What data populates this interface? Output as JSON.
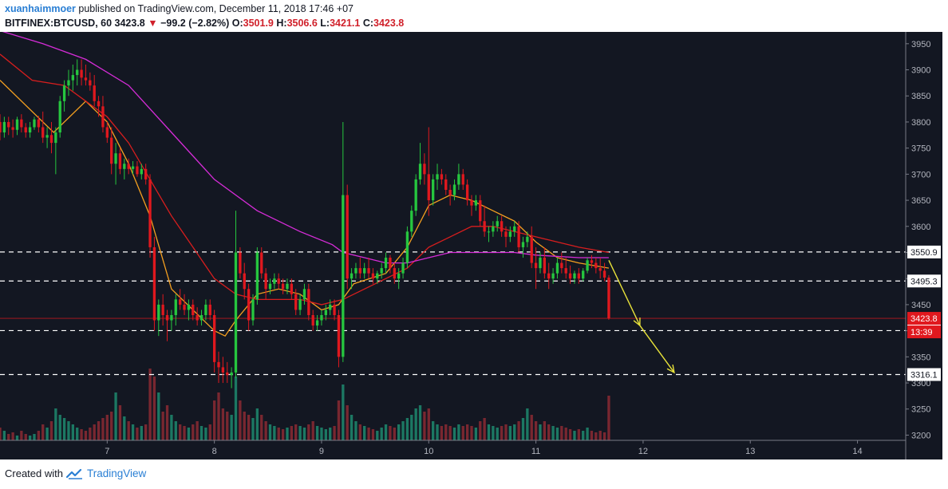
{
  "header": {
    "author": "xuanhaimmoer",
    "published_text": "published on TradingView.com, December 11, 2018 17:46 +07",
    "symbol": "BITFINEX:BTCUSD, 60",
    "last": "3423.8",
    "arrow": "▼",
    "change": "−99.2 (−2.82%)",
    "o_label": "O:",
    "o": "3501.9",
    "h_label": "H:",
    "h": "3506.6",
    "l_label": "L:",
    "l": "3421.1",
    "c_label": "C:",
    "c": "3423.8"
  },
  "footer": {
    "created_with": "Created with",
    "brand": "TradingView"
  },
  "colors": {
    "background": "#131722",
    "up": "#26c63f",
    "down": "#e0181e",
    "ema_fast": "#f5a020",
    "ema_mid": "#d81e1e",
    "ema_slow": "#d62cd8",
    "levels": "#ffffff",
    "arrow": "#e8e23a"
  },
  "chart_data": {
    "type": "candlestick",
    "x_ticks": [
      "7",
      "8",
      "9",
      "10",
      "11",
      "12",
      "13",
      "14"
    ],
    "y_ticks": [
      3200,
      3250,
      3300,
      3350,
      3400,
      3450,
      3500,
      3550,
      3600,
      3650,
      3700,
      3750,
      3800,
      3850,
      3900,
      3950
    ],
    "ylim": [
      3190,
      3965
    ],
    "xlim": [
      6.0,
      14.45
    ],
    "grid": false,
    "levels": [
      {
        "value": 3550.9,
        "label": "3550.9",
        "style": "dashed"
      },
      {
        "value": 3495.3,
        "label": "3495.3",
        "style": "dashed"
      },
      {
        "value": 3400.3,
        "label": "3400.3",
        "style": "dashed"
      },
      {
        "value": 3316.1,
        "label": "3316.1",
        "style": "dashed"
      }
    ],
    "last_price": {
      "value": 3423.8,
      "label": "3423.8",
      "countdown": "13:39"
    },
    "candles_key": [
      "day",
      "open",
      "high",
      "low",
      "close",
      "volume"
    ],
    "candles": [
      [
        6.0,
        3800,
        3815,
        3765,
        3780,
        8
      ],
      [
        6.04,
        3780,
        3810,
        3770,
        3800,
        6
      ],
      [
        6.08,
        3800,
        3810,
        3775,
        3790,
        4
      ],
      [
        6.12,
        3790,
        3805,
        3770,
        3785,
        5
      ],
      [
        6.16,
        3785,
        3810,
        3775,
        3805,
        3
      ],
      [
        6.2,
        3805,
        3815,
        3780,
        3790,
        6
      ],
      [
        6.24,
        3790,
        3798,
        3770,
        3780,
        4
      ],
      [
        6.28,
        3780,
        3800,
        3770,
        3790,
        3
      ],
      [
        6.32,
        3790,
        3810,
        3785,
        3805,
        4
      ],
      [
        6.36,
        3805,
        3812,
        3780,
        3790,
        6
      ],
      [
        6.4,
        3790,
        3820,
        3760,
        3770,
        10
      ],
      [
        6.44,
        3770,
        3790,
        3750,
        3775,
        8
      ],
      [
        6.48,
        3775,
        3800,
        3740,
        3760,
        12
      ],
      [
        6.52,
        3760,
        3790,
        3700,
        3780,
        20
      ],
      [
        6.56,
        3780,
        3850,
        3770,
        3840,
        16
      ],
      [
        6.6,
        3840,
        3880,
        3820,
        3870,
        14
      ],
      [
        6.64,
        3870,
        3900,
        3850,
        3880,
        12
      ],
      [
        6.68,
        3880,
        3910,
        3860,
        3890,
        10
      ],
      [
        6.72,
        3890,
        3920,
        3870,
        3900,
        8
      ],
      [
        6.76,
        3900,
        3920,
        3870,
        3885,
        7
      ],
      [
        6.8,
        3885,
        3910,
        3870,
        3880,
        6
      ],
      [
        6.84,
        3880,
        3895,
        3860,
        3870,
        8
      ],
      [
        6.88,
        3870,
        3890,
        3830,
        3840,
        10
      ],
      [
        6.92,
        3840,
        3850,
        3810,
        3830,
        12
      ],
      [
        6.96,
        3830,
        3850,
        3780,
        3790,
        14
      ],
      [
        7.0,
        3790,
        3800,
        3760,
        3770,
        16
      ],
      [
        7.04,
        3770,
        3790,
        3700,
        3720,
        18
      ],
      [
        7.08,
        3720,
        3760,
        3680,
        3740,
        30
      ],
      [
        7.12,
        3740,
        3750,
        3700,
        3710,
        22
      ],
      [
        7.16,
        3710,
        3730,
        3690,
        3720,
        15
      ],
      [
        7.2,
        3720,
        3730,
        3700,
        3710,
        12
      ],
      [
        7.24,
        3710,
        3725,
        3700,
        3715,
        10
      ],
      [
        7.28,
        3715,
        3725,
        3695,
        3700,
        8
      ],
      [
        7.32,
        3700,
        3720,
        3690,
        3710,
        9
      ],
      [
        7.36,
        3710,
        3720,
        3680,
        3690,
        10
      ],
      [
        7.4,
        3690,
        3700,
        3540,
        3560,
        45
      ],
      [
        7.44,
        3560,
        3580,
        3400,
        3420,
        40
      ],
      [
        7.48,
        3420,
        3460,
        3390,
        3450,
        30
      ],
      [
        7.52,
        3450,
        3470,
        3410,
        3430,
        18
      ],
      [
        7.56,
        3430,
        3440,
        3380,
        3420,
        22
      ],
      [
        7.6,
        3420,
        3440,
        3400,
        3430,
        16
      ],
      [
        7.64,
        3430,
        3470,
        3410,
        3460,
        12
      ],
      [
        7.68,
        3460,
        3480,
        3440,
        3450,
        10
      ],
      [
        7.72,
        3450,
        3470,
        3430,
        3440,
        9
      ],
      [
        7.76,
        3440,
        3460,
        3420,
        3450,
        8
      ],
      [
        7.8,
        3450,
        3460,
        3420,
        3430,
        10
      ],
      [
        7.84,
        3430,
        3445,
        3410,
        3420,
        12
      ],
      [
        7.88,
        3420,
        3440,
        3410,
        3430,
        9
      ],
      [
        7.92,
        3430,
        3460,
        3420,
        3450,
        8
      ],
      [
        7.96,
        3450,
        3460,
        3420,
        3430,
        10
      ],
      [
        8.0,
        3430,
        3440,
        3320,
        3340,
        25
      ],
      [
        8.04,
        3340,
        3360,
        3300,
        3330,
        30
      ],
      [
        8.08,
        3330,
        3350,
        3300,
        3320,
        20
      ],
      [
        8.12,
        3320,
        3340,
        3300,
        3315,
        18
      ],
      [
        8.16,
        3315,
        3330,
        3290,
        3320,
        16
      ],
      [
        8.2,
        3320,
        3630,
        3310,
        3550,
        40
      ],
      [
        8.24,
        3550,
        3560,
        3500,
        3510,
        25
      ],
      [
        8.28,
        3510,
        3530,
        3460,
        3480,
        18
      ],
      [
        8.32,
        3480,
        3490,
        3400,
        3420,
        16
      ],
      [
        8.36,
        3420,
        3470,
        3410,
        3460,
        14
      ],
      [
        8.4,
        3460,
        3560,
        3450,
        3550,
        20
      ],
      [
        8.44,
        3550,
        3560,
        3500,
        3510,
        16
      ],
      [
        8.48,
        3510,
        3520,
        3460,
        3480,
        12
      ],
      [
        8.52,
        3480,
        3500,
        3470,
        3490,
        10
      ],
      [
        8.56,
        3490,
        3510,
        3480,
        3500,
        9
      ],
      [
        8.6,
        3500,
        3510,
        3480,
        3490,
        8
      ],
      [
        8.64,
        3490,
        3500,
        3470,
        3480,
        7
      ],
      [
        8.68,
        3480,
        3500,
        3470,
        3490,
        8
      ],
      [
        8.72,
        3490,
        3500,
        3460,
        3470,
        9
      ],
      [
        8.76,
        3470,
        3480,
        3430,
        3440,
        10
      ],
      [
        8.8,
        3440,
        3470,
        3430,
        3460,
        9
      ],
      [
        8.84,
        3460,
        3490,
        3450,
        3480,
        8
      ],
      [
        8.88,
        3480,
        3490,
        3420,
        3430,
        10
      ],
      [
        8.92,
        3430,
        3440,
        3400,
        3410,
        12
      ],
      [
        8.96,
        3410,
        3430,
        3400,
        3420,
        9
      ],
      [
        9.0,
        3420,
        3440,
        3410,
        3430,
        8
      ],
      [
        9.04,
        3430,
        3450,
        3420,
        3440,
        7
      ],
      [
        9.08,
        3440,
        3460,
        3430,
        3450,
        8
      ],
      [
        9.12,
        3450,
        3460,
        3420,
        3430,
        9
      ],
      [
        9.16,
        3430,
        3440,
        3330,
        3350,
        25
      ],
      [
        9.2,
        3350,
        3800,
        3340,
        3660,
        35
      ],
      [
        9.24,
        3660,
        3680,
        3480,
        3500,
        22
      ],
      [
        9.28,
        3500,
        3520,
        3480,
        3510,
        16
      ],
      [
        9.32,
        3510,
        3530,
        3500,
        3520,
        12
      ],
      [
        9.36,
        3520,
        3540,
        3500,
        3510,
        10
      ],
      [
        9.4,
        3510,
        3530,
        3500,
        3520,
        9
      ],
      [
        9.44,
        3520,
        3540,
        3500,
        3510,
        8
      ],
      [
        9.48,
        3510,
        3520,
        3490,
        3500,
        7
      ],
      [
        9.52,
        3500,
        3515,
        3490,
        3510,
        6
      ],
      [
        9.56,
        3510,
        3530,
        3500,
        3520,
        8
      ],
      [
        9.6,
        3520,
        3550,
        3510,
        3540,
        10
      ],
      [
        9.64,
        3540,
        3545,
        3510,
        3520,
        9
      ],
      [
        9.68,
        3520,
        3530,
        3490,
        3500,
        8
      ],
      [
        9.72,
        3500,
        3520,
        3480,
        3510,
        10
      ],
      [
        9.76,
        3510,
        3540,
        3500,
        3530,
        12
      ],
      [
        9.8,
        3530,
        3600,
        3520,
        3590,
        14
      ],
      [
        9.84,
        3590,
        3640,
        3580,
        3630,
        16
      ],
      [
        9.88,
        3630,
        3700,
        3620,
        3690,
        20
      ],
      [
        9.92,
        3690,
        3760,
        3680,
        3720,
        22
      ],
      [
        9.96,
        3720,
        3740,
        3680,
        3700,
        18
      ],
      [
        10.0,
        3700,
        3790,
        3620,
        3650,
        20
      ],
      [
        10.04,
        3650,
        3700,
        3640,
        3690,
        12
      ],
      [
        10.08,
        3690,
        3720,
        3670,
        3700,
        10
      ],
      [
        10.12,
        3700,
        3710,
        3680,
        3690,
        9
      ],
      [
        10.16,
        3690,
        3700,
        3660,
        3670,
        10
      ],
      [
        10.2,
        3670,
        3680,
        3640,
        3660,
        9
      ],
      [
        10.24,
        3660,
        3690,
        3650,
        3680,
        8
      ],
      [
        10.28,
        3680,
        3720,
        3670,
        3700,
        10
      ],
      [
        10.32,
        3700,
        3710,
        3670,
        3680,
        9
      ],
      [
        10.36,
        3680,
        3690,
        3640,
        3650,
        10
      ],
      [
        10.4,
        3650,
        3660,
        3620,
        3640,
        9
      ],
      [
        10.44,
        3640,
        3660,
        3630,
        3650,
        8
      ],
      [
        10.48,
        3650,
        3660,
        3600,
        3610,
        12
      ],
      [
        10.52,
        3610,
        3640,
        3580,
        3590,
        14
      ],
      [
        10.56,
        3590,
        3600,
        3570,
        3590,
        10
      ],
      [
        10.6,
        3590,
        3610,
        3580,
        3600,
        9
      ],
      [
        10.64,
        3600,
        3620,
        3590,
        3610,
        8
      ],
      [
        10.68,
        3610,
        3620,
        3580,
        3590,
        9
      ],
      [
        10.72,
        3590,
        3600,
        3560,
        3580,
        10
      ],
      [
        10.76,
        3580,
        3600,
        3570,
        3590,
        9
      ],
      [
        10.8,
        3590,
        3610,
        3580,
        3600,
        10
      ],
      [
        10.84,
        3600,
        3610,
        3550,
        3560,
        12
      ],
      [
        10.88,
        3560,
        3580,
        3540,
        3570,
        14
      ],
      [
        10.92,
        3570,
        3590,
        3560,
        3580,
        20
      ],
      [
        10.96,
        3580,
        3600,
        3520,
        3530,
        16
      ],
      [
        11.0,
        3530,
        3560,
        3480,
        3520,
        12
      ],
      [
        11.04,
        3520,
        3550,
        3510,
        3540,
        10
      ],
      [
        11.08,
        3540,
        3560,
        3500,
        3510,
        12
      ],
      [
        11.12,
        3510,
        3530,
        3480,
        3500,
        10
      ],
      [
        11.16,
        3500,
        3520,
        3490,
        3510,
        9
      ],
      [
        11.2,
        3510,
        3540,
        3500,
        3530,
        8
      ],
      [
        11.24,
        3530,
        3550,
        3510,
        3520,
        9
      ],
      [
        11.28,
        3520,
        3540,
        3500,
        3510,
        8
      ],
      [
        11.32,
        3510,
        3525,
        3490,
        3500,
        7
      ],
      [
        11.36,
        3500,
        3515,
        3490,
        3510,
        6
      ],
      [
        11.4,
        3510,
        3520,
        3490,
        3500,
        7
      ],
      [
        11.44,
        3500,
        3520,
        3495,
        3515,
        6
      ],
      [
        11.48,
        3515,
        3540,
        3510,
        3535,
        8
      ],
      [
        11.52,
        3535,
        3545,
        3520,
        3530,
        6
      ],
      [
        11.56,
        3530,
        3540,
        3510,
        3520,
        5
      ],
      [
        11.6,
        3520,
        3540,
        3500,
        3515,
        6
      ],
      [
        11.64,
        3515,
        3530,
        3495,
        3501.9,
        5
      ],
      [
        11.68,
        3501.9,
        3506.6,
        3421.1,
        3423.8,
        28
      ]
    ],
    "ema_fast": [
      [
        6.0,
        3880
      ],
      [
        6.5,
        3780
      ],
      [
        6.8,
        3840
      ],
      [
        7.0,
        3800
      ],
      [
        7.2,
        3720
      ],
      [
        7.4,
        3620
      ],
      [
        7.6,
        3480
      ],
      [
        7.8,
        3440
      ],
      [
        8.0,
        3400
      ],
      [
        8.1,
        3390
      ],
      [
        8.2,
        3420
      ],
      [
        8.4,
        3470
      ],
      [
        8.6,
        3480
      ],
      [
        8.8,
        3470
      ],
      [
        9.0,
        3440
      ],
      [
        9.16,
        3450
      ],
      [
        9.3,
        3490
      ],
      [
        9.6,
        3510
      ],
      [
        9.8,
        3560
      ],
      [
        10.0,
        3640
      ],
      [
        10.2,
        3660
      ],
      [
        10.4,
        3650
      ],
      [
        10.6,
        3630
      ],
      [
        10.8,
        3610
      ],
      [
        11.0,
        3570
      ],
      [
        11.2,
        3540
      ],
      [
        11.4,
        3530
      ],
      [
        11.68,
        3520
      ]
    ],
    "ema_mid": [
      [
        6.0,
        3930
      ],
      [
        6.3,
        3880
      ],
      [
        6.6,
        3870
      ],
      [
        7.0,
        3810
      ],
      [
        7.2,
        3760
      ],
      [
        7.4,
        3690
      ],
      [
        7.6,
        3620
      ],
      [
        7.8,
        3560
      ],
      [
        8.0,
        3500
      ],
      [
        8.2,
        3470
      ],
      [
        8.4,
        3460
      ],
      [
        8.6,
        3460
      ],
      [
        8.8,
        3460
      ],
      [
        9.0,
        3450
      ],
      [
        9.2,
        3460
      ],
      [
        9.4,
        3480
      ],
      [
        9.6,
        3500
      ],
      [
        9.8,
        3520
      ],
      [
        10.0,
        3560
      ],
      [
        10.2,
        3580
      ],
      [
        10.4,
        3600
      ],
      [
        10.6,
        3600
      ],
      [
        10.8,
        3590
      ],
      [
        11.0,
        3580
      ],
      [
        11.2,
        3570
      ],
      [
        11.4,
        3560
      ],
      [
        11.68,
        3550
      ]
    ],
    "ema_slow": [
      [
        6.0,
        3975
      ],
      [
        6.4,
        3950
      ],
      [
        6.8,
        3920
      ],
      [
        7.2,
        3870
      ],
      [
        7.6,
        3780
      ],
      [
        8.0,
        3690
      ],
      [
        8.4,
        3630
      ],
      [
        8.8,
        3590
      ],
      [
        9.1,
        3565
      ],
      [
        9.2,
        3550
      ],
      [
        9.4,
        3540
      ],
      [
        9.6,
        3530
      ],
      [
        9.8,
        3530
      ],
      [
        10.0,
        3540
      ],
      [
        10.2,
        3550
      ],
      [
        10.5,
        3550
      ],
      [
        10.8,
        3550
      ],
      [
        11.0,
        3545
      ],
      [
        11.4,
        3540
      ],
      [
        11.68,
        3540
      ]
    ],
    "projection": [
      {
        "from": [
          11.68,
          3535
        ],
        "to": [
          11.97,
          3410
        ]
      },
      {
        "from": [
          11.97,
          3410
        ],
        "to": [
          12.29,
          3320
        ]
      }
    ]
  }
}
